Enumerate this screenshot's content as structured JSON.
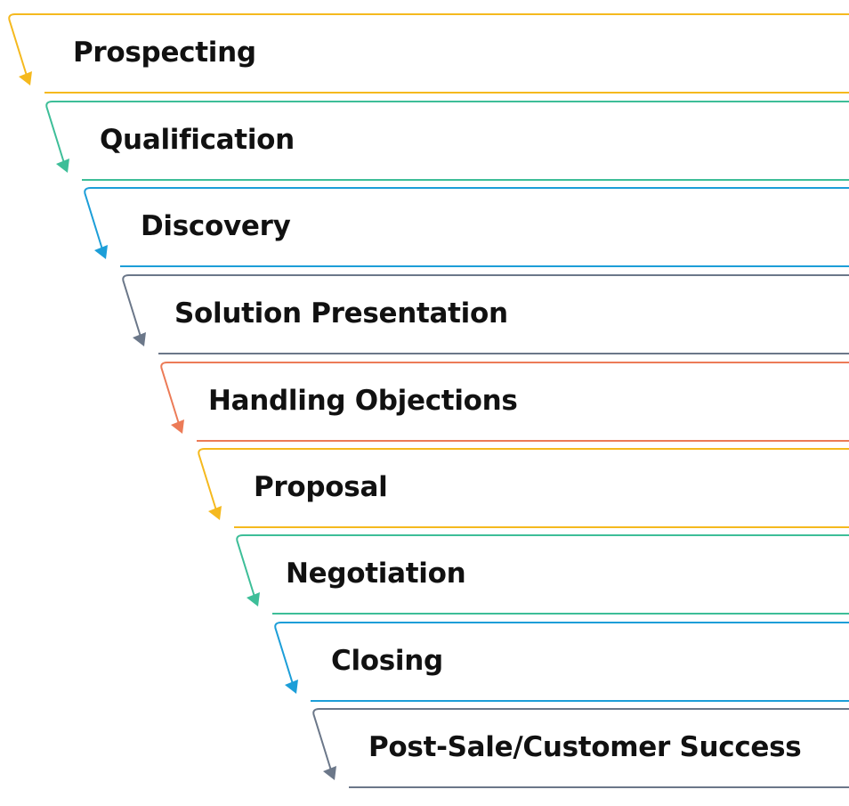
{
  "steps": [
    {
      "label": "Prospecting",
      "color": "#F5B91E"
    },
    {
      "label": "Qualification",
      "color": "#3DBE98"
    },
    {
      "label": "Discovery",
      "color": "#1C9ED8"
    },
    {
      "label": "Solution Presentation",
      "color": "#6B7789"
    },
    {
      "label": "Handling Objections",
      "color": "#EC7B57"
    },
    {
      "label": "Proposal",
      "color": "#F5B91E"
    },
    {
      "label": "Negotiation",
      "color": "#3DBE98"
    },
    {
      "label": "Closing",
      "color": "#1C9ED8"
    },
    {
      "label": "Post-Sale/Customer Success",
      "color": "#6B7789"
    }
  ]
}
